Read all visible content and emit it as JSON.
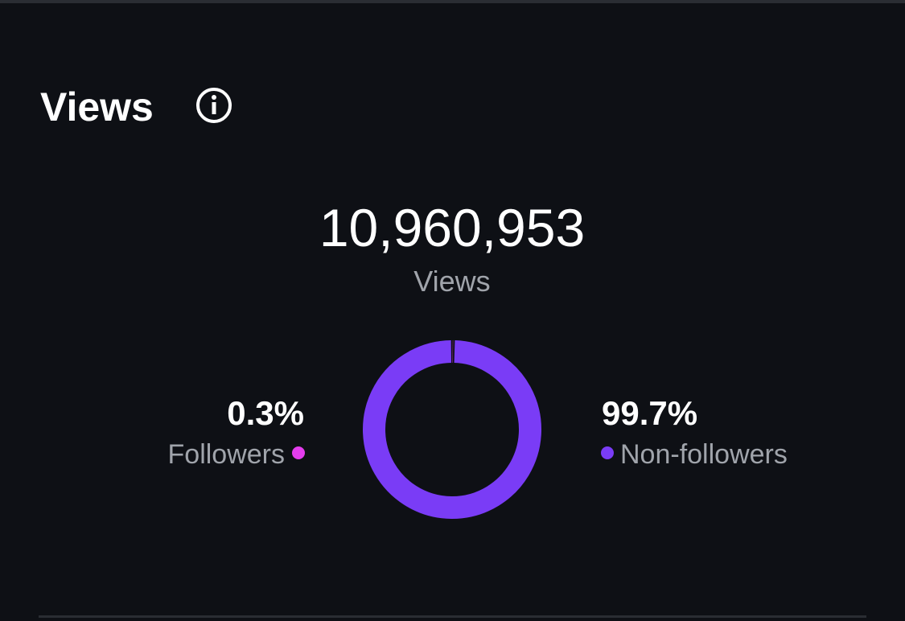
{
  "header": {
    "title": "Views"
  },
  "total": {
    "value": "10,960,953",
    "label": "Views"
  },
  "chart_data": {
    "type": "pie",
    "categories": [
      "Followers",
      "Non-followers"
    ],
    "values": [
      0.3,
      99.7
    ],
    "value_labels": [
      "0.3%",
      "99.7%"
    ],
    "colors": [
      "#e43ded",
      "#7a3cf6"
    ]
  }
}
